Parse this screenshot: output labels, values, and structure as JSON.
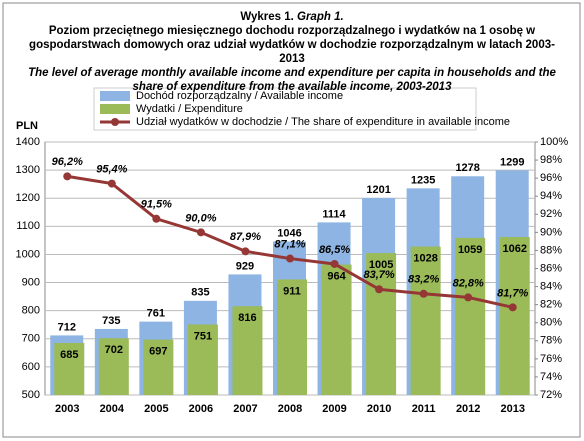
{
  "chart_data": {
    "type": "bar",
    "title": "Wykres 1.",
    "title_en": "Graph 1.",
    "subtitle": "Poziom przeciętnego miesięcznego dochodu rozporządzalnego i wydatków na 1 osobę w gospodarstwach domowych oraz udział wydatków w dochodzie rozporządzalnym w latach 2003-2013",
    "subtitle_en": "The level of average monthly available income and expenditure per capita in households and the share of expenditure from the available income, 2003-2013",
    "ylabel": "PLN",
    "categories": [
      "2003",
      "2004",
      "2005",
      "2006",
      "2007",
      "2008",
      "2009",
      "2010",
      "2011",
      "2012",
      "2013"
    ],
    "series": [
      {
        "name": "Dochód rozporządzalny / Available income",
        "type": "bar",
        "color": "#8db4e2",
        "values": [
          712,
          735,
          761,
          835,
          929,
          1046,
          1114,
          1201,
          1235,
          1278,
          1299
        ]
      },
      {
        "name": "Wydatki / Expenditure",
        "type": "bar",
        "color": "#9bbb59",
        "values": [
          685,
          702,
          697,
          751,
          816,
          911,
          964,
          1005,
          1028,
          1059,
          1062
        ]
      },
      {
        "name": "Udział wydatków w dochodzie / The share of expenditure in available income",
        "type": "line",
        "axis": "y2",
        "color": "#953735",
        "values": [
          96.2,
          95.4,
          91.5,
          90.0,
          87.9,
          87.1,
          86.5,
          83.7,
          83.2,
          82.8,
          81.7
        ],
        "value_labels": [
          "96,2%",
          "95,4%",
          "91,5%",
          "90,0%",
          "87,9%",
          "87,1%",
          "86,5%",
          "83,7%",
          "83,2%",
          "82,8%",
          "81,7%"
        ]
      }
    ],
    "ylim": [
      500,
      1400
    ],
    "yticks": [
      500,
      600,
      700,
      800,
      900,
      1000,
      1100,
      1200,
      1300,
      1400
    ],
    "y2lim": [
      72,
      100
    ],
    "y2ticks": [
      {
        "value": 72,
        "label": "72%"
      },
      {
        "value": 74,
        "label": "74%"
      },
      {
        "value": 76,
        "label": "76%"
      },
      {
        "value": 78,
        "label": "78%"
      },
      {
        "value": 80,
        "label": "80%"
      },
      {
        "value": 82,
        "label": "82%"
      },
      {
        "value": 84,
        "label": "84%"
      },
      {
        "value": 86,
        "label": "86%"
      },
      {
        "value": 88,
        "label": "88%"
      },
      {
        "value": 90,
        "label": "90%"
      },
      {
        "value": 92,
        "label": "92%"
      },
      {
        "value": 94,
        "label": "94%"
      },
      {
        "value": 96,
        "label": "96%"
      },
      {
        "value": 98,
        "label": "98%"
      },
      {
        "value": 100,
        "label": "100%"
      }
    ],
    "grid": true
  }
}
